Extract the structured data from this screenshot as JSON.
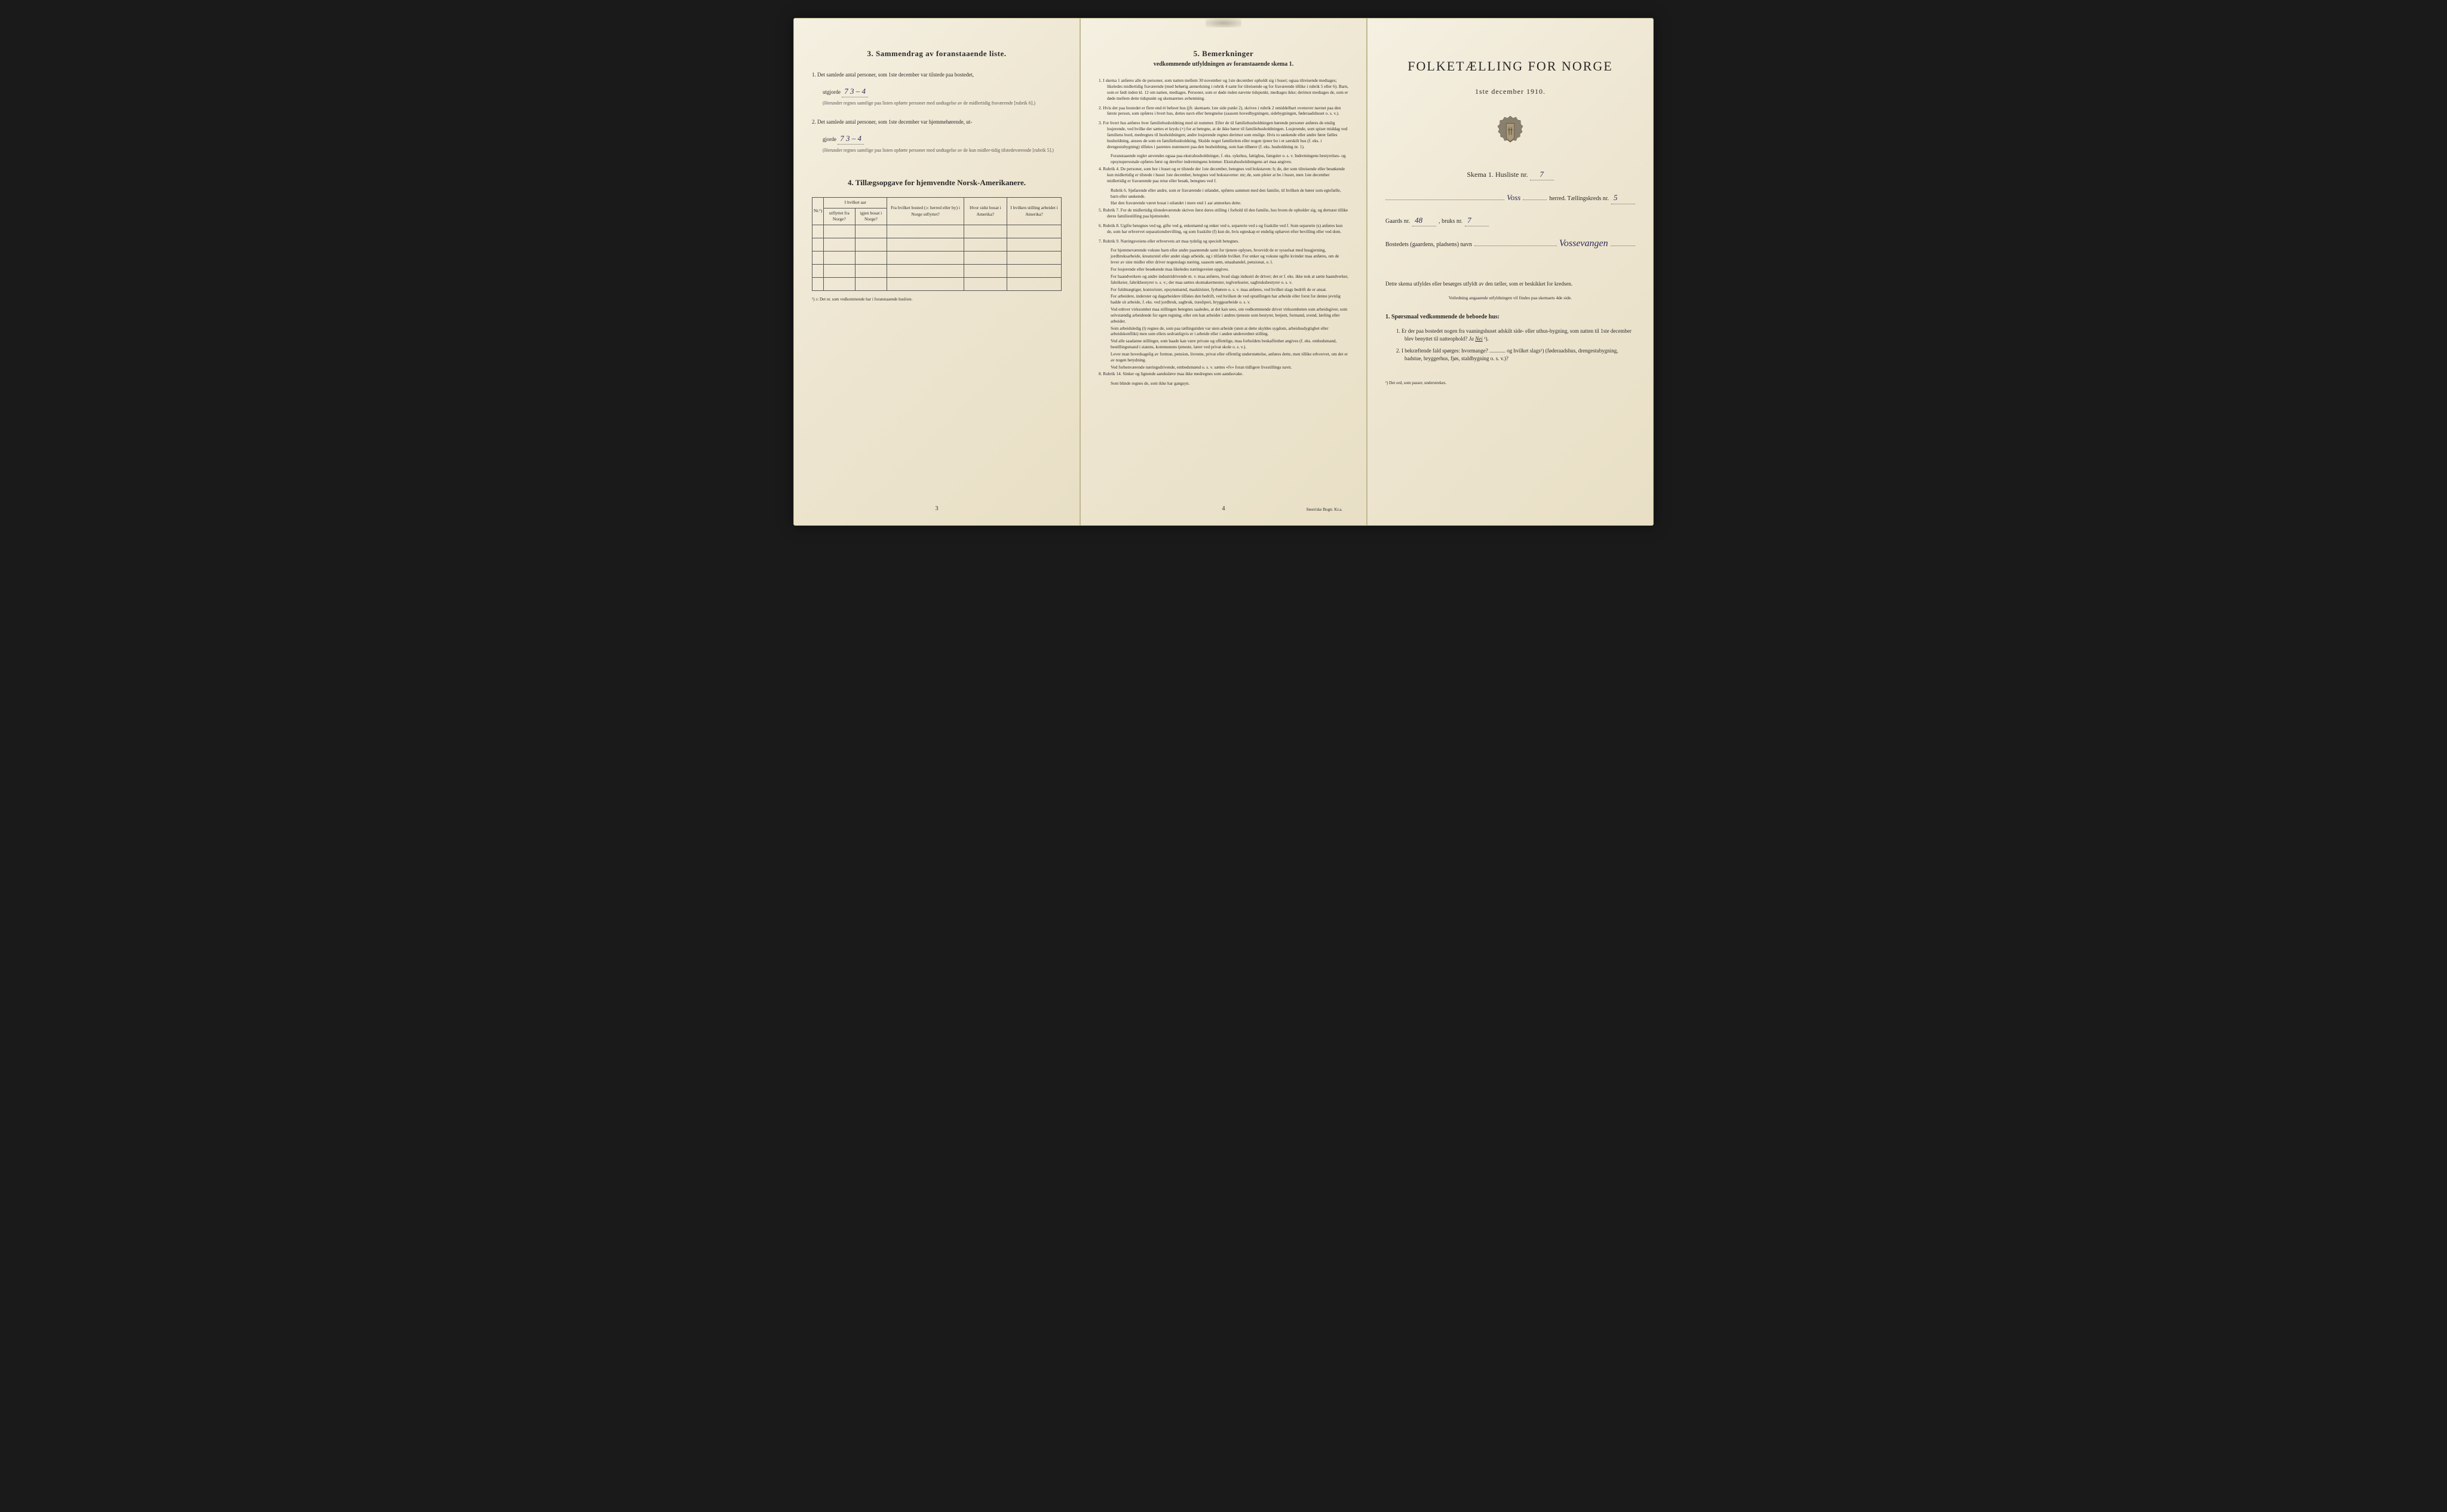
{
  "page_left": {
    "section3": {
      "title": "3.   Sammendrag av foranstaaende liste.",
      "item1_pre": "1.  Det samlede antal personer, som 1ste december var tilstede paa bostedet,",
      "item1_label": "utgjorde",
      "item1_value": "7   3 – 4",
      "item1_note": "(Herunder regnes samtlige paa listen opførte personer med undtagelse av de midlertidig fraværende [rubrik 6].)",
      "item2_pre": "2.  Det samlede antal personer, som 1ste december var hjemmehørende, ut-",
      "item2_label": "gjorde",
      "item2_value": "7   3 – 4",
      "item2_note": "(Herunder regnes samtlige paa listen opførte personer med undtagelse av de kun midler-tidig tilstedeværende [rubrik 5].)"
    },
    "section4": {
      "title": "4.   Tillægsopgave for hjemvendte Norsk-Amerikanere.",
      "columns": {
        "c0": "Nr.¹)",
        "c1_top": "I hvilket aar",
        "c1a": "utflyttet fra Norge?",
        "c1b": "igjen bosat i Norge?",
        "c2": "Fra hvilket bosted (ɔ: herred eller by) i Norge utflyttet?",
        "c3": "Hvor sidst bosat i Amerika?",
        "c4": "I hvilken stilling arbeidet i Amerika?"
      },
      "footnote": "¹) ɔ: Det nr. som vedkommende har i foranstaaende husliste."
    },
    "page_number": "3"
  },
  "page_center": {
    "title": "5.   Bemerkninger",
    "subtitle": "vedkommende utfyldningen av foranstaaende skema 1.",
    "items": [
      "1.  I skema 1 anføres alle de personer, som natten mellem 30 november og 1ste december opholdt sig i huset; ogsaa tilreisende medtages; likeledes midlertidig fraværende (med behørig anmerkning i rubrik 4 samt for tilreisende og for fraværende tillike i rubrik 5 eller 6). Barn, som er født inden kl. 12 om natten, medtages. Personer, som er døde inden nævnte tidspunkt, medtages ikke; derimot medtages de, som er døde mellem dette tidspunkt og skemaernes avhentning.",
      "2.  Hvis der paa bostedet er flere end ét beboet hus (jfr. skemaets 1ste side punkt 2), skrives i rubrik 2 umiddelbart ovenover navnet paa den første person, som opføres i hvert hus, dettes navn eller betegnelse (saasom hovedbygningen, sidebygningen, føderaadshuset o. s. v.).",
      "3.  For hvert hus anføres hver familiehusholdning med sit nummer. Efter de til familiehusholdningen hørende personer anføres de enslig losjerende, ved hvilke der sættes et kryds (×) for at betegne, at de ikke hører til familiehusholdningen. Losjerende, som spiser middag ved familiens bord, medregnes til husholdningen; andre losjerende regnes derimot som enslige. Hvis to søskende eller andre fører fælles husholdning, ansees de som en familiehusholdning. Skulde noget familielem eller nogen tjener bo i et særskilt hus (f. eks. i drengestubygning) tilføies i parentes nummeret paa den husholdning, som han tilhører (f. eks. husholdning nr. 1).",
      "    Foranstaaende regler anvendes ogsaa paa ekstrahusholdninger, f. eks. sykehus, fattighus, fængsler o. s. v. Indretningens bestyrelses- og opsynspersonale opføres først og derefter indretningens lemmer. Ekstrahusholdningens art maa angives.",
      "4.  Rubrik 4. De personer, som bor i huset og er tilstede der 1ste december, betegnes ved bokstaven: b; de, der som tilreisende eller besøkende kun midlertidig er tilstede i huset 1ste december, betegnes ved bokstaverne: mt; de, som pleier at bo i huset, men 1ste december midlertidig er fraværende paa reise eller besøk, betegnes ved f.",
      "    Rubrik 6. Sjøfarende eller andre, som er fraværende i utlandet, opføres sammen med den familie, til hvilken de hører som egtefælle, barn eller søskende.",
      "    Har den fraværende været bosat i utlandet i mere end 1 aar anmerkes dette.",
      "5.  Rubrik 7. For de midlertidig tilstedeværende skrives først deres stilling i forhold til den familie, hos hvem de opholder sig, og dernæst tillike deres familiestilling paa hjemstedet.",
      "6.  Rubrik 8. Ugifte betegnes ved ug, gifte ved g, enkemænd og enker ved e, separerte ved s og fraskilte ved f. Som separerte (s) anføres kun de, som har erhvervet separationsbevilling, og som fraskilte (f) kun de, hvis egteskap er endelig ophævet efter bevilling eller ved dom.",
      "7.  Rubrik 9. Næringsveiens eller erhvervets art maa tydelig og specielt betegnes.",
      "    For hjemmeværende voksne barn eller andre paarørende samt for tjenere oplyses, hvorvidt de er sysselsat med husgjerning, jordbruksarbeide, kreaturstel eller andet slags arbeide, og i tilfælde hvilket. For enker og voksne ugifte kvinder maa anføres, om de lever av sine midler eller driver nogenslags næring, saasom søm, smaahandel, pensionat, o. l.",
      "    For losjerende eller besøkende maa likeledes næringsveien opgives.",
      "    For haandverkere og andre industridrivende m. v. maa anføres, hvad slags industri de driver; det er f. eks. ikke nok at sætte haandverker, fabrikeier, fabrikbestyrer o. s. v.; der maa sættes skomakermester, teglverkseier, sagbruksbestyrer o. s. v.",
      "    For fuldmægtiger, kontorister, opsynsmænd, maskinister, fyrbøtere o. s. v. maa anføres, ved hvilket slags bedrift de er ansat.",
      "    For arbeidere, inderster og dagarbeidere tilføies den bedrift, ved hvilken de ved optællingen har arbeide eller forut for denne jevnlig hadde sit arbeide, f. eks. ved jordbruk, sagbruk, træsliperi, bryggearbeide o. s. v.",
      "    Ved enhver virksomhet maa stillingen betegnes saaledes, at det kan sees, om vedkommende driver virksomheten som arbeidsgiver, som selvstændig arbeidende for egen regning, eller om han arbeider i andres tjeneste som bestyrer, betjent, formand, svend, lærling eller arbeider.",
      "    Som arbeidsledig (l) regnes de, som paa tællingstiden var uten arbeide (uten at dette skyldes sygdom, arbeidsudygtighet eller arbeidskonflikt) men som ellers sedvanligvis er i arbeide eller i anden underordnet stilling.",
      "    Ved alle saadanne stillinger, som baade kan være private og offentlige, maa forholdets beskaffenhet angives (f. eks. embedsmand, bestillingsmand i statens, kommunens tjeneste, lærer ved privat skole o. s. v.).",
      "    Lever man hovedsagelig av formue, pension, livrente, privat eller offentlig understøttelse, anføres dette, men tillike erhvervet, om det er av nogen betydning.",
      "    Ved forhenværende næringsdrivende, embedsmænd o. s. v. sættes «fv» foran tidligere livsstillings navn.",
      "8.  Rubrik 14. Sinker og lignende aandssløve maa ikke medregnes som aandssvake.",
      "    Som blinde regnes de, som ikke har gangsyn."
    ],
    "page_number": "4",
    "printer": "Steen'ske Bogtr.  Kr.a."
  },
  "page_right": {
    "main_title": "FOLKETÆLLING FOR NORGE",
    "date": "1ste december 1910.",
    "skema_label": "Skema 1.   Husliste nr.",
    "skema_value": "7",
    "herred_value": "Voss",
    "herred_suffix": "herred.   Tællingskreds nr.",
    "kreds_value": "5",
    "gaard_label": "Gaards nr.",
    "gaard_value": "48",
    "bruk_label": ", bruks nr.",
    "bruk_value": "7",
    "bosted_label": "Bostedets (gaardens, pladsens) navn",
    "bosted_value": "Vossevangen",
    "instructions_p1": "Dette skema utfyldes eller besørges utfyldt av den tæller, som er beskikket for kredsen.",
    "instructions_small": "Veiledning angaaende utfyldningen vil findes paa skemaets 4de side.",
    "q_heading": "1. Spørsmaal vedkommende de beboede hus:",
    "q1": "1.  Er der paa bostedet nogen fra vaaningshuset adskilt side- eller uthus-bygning, som natten til 1ste december blev benyttet til natteophold?",
    "q1_ja": "Ja",
    "q1_nei": "Nei",
    "q1_sup": "¹).",
    "q2": "2.  I bekræftende fald spørges: hvormange? ............ og hvilket slags¹) (føderaadshus, drengestubygning, badstue, bryggerhus, fjøs, staldbygning o. s. v.)?",
    "right_footnote": "¹) Det ord, som passer, understrekes."
  },
  "colors": {
    "paper": "#ede5d0",
    "ink": "#2a2a2a",
    "handwriting": "#2a2a5a",
    "border": "#555"
  }
}
